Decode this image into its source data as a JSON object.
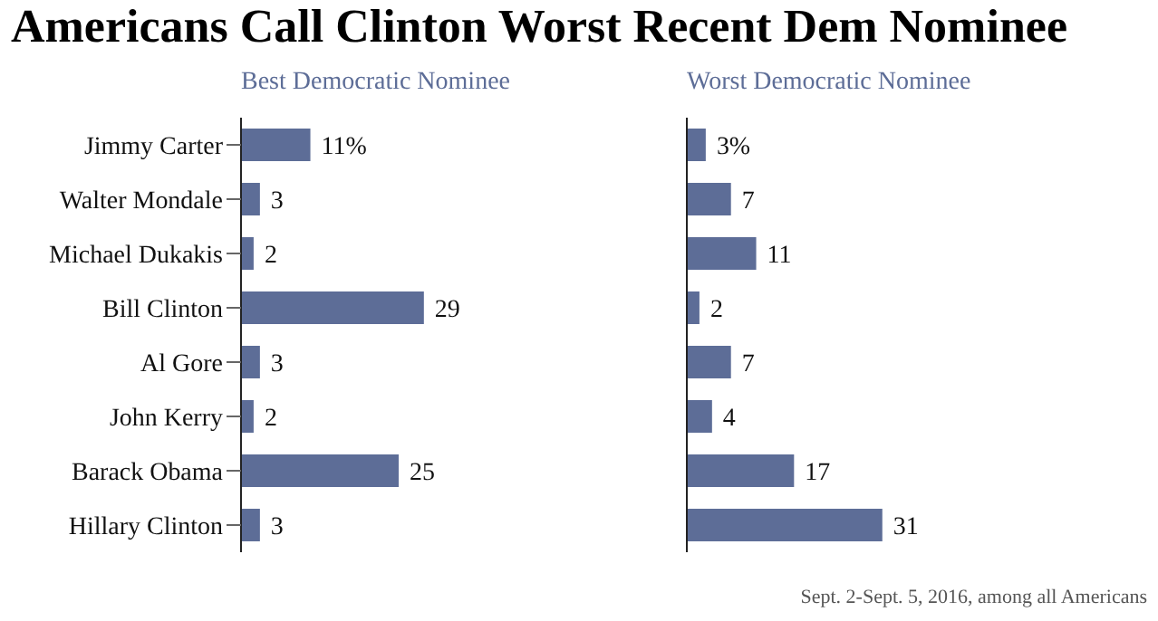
{
  "chart_data": [
    {
      "type": "bar",
      "orientation": "horizontal",
      "title": "Americans Call Clinton Worst Recent Dem Nominee",
      "subtitle": "Best Democratic Nominee",
      "categories": [
        "Jimmy Carter",
        "Walter Mondale",
        "Michael Dukakis",
        "Bill Clinton",
        "Al Gore",
        "John Kerry",
        "Barack Obama",
        "Hillary Clinton"
      ],
      "values": [
        11,
        3,
        2,
        29,
        3,
        2,
        25,
        3
      ],
      "value_labels": [
        "11%",
        "3",
        "2",
        "29",
        "3",
        "2",
        "25",
        "3"
      ],
      "color": "#5d6d97",
      "tick_labels": "y",
      "grid": false,
      "legend": false
    },
    {
      "type": "bar",
      "orientation": "horizontal",
      "subtitle": "Worst Democratic Nominee",
      "categories": [
        null,
        null,
        null,
        null,
        null,
        null,
        null,
        null
      ],
      "values": [
        3,
        7,
        11,
        2,
        7,
        4,
        17,
        31
      ],
      "value_labels": [
        "3%",
        "7",
        "11",
        "2",
        "7",
        "4",
        "17",
        "31"
      ],
      "color": "#5d6d97",
      "tick_labels": false,
      "grid": false,
      "legend": false,
      "annotations": [
        "Sept. 2-Sept. 5, 2016, among all Americans"
      ]
    }
  ]
}
